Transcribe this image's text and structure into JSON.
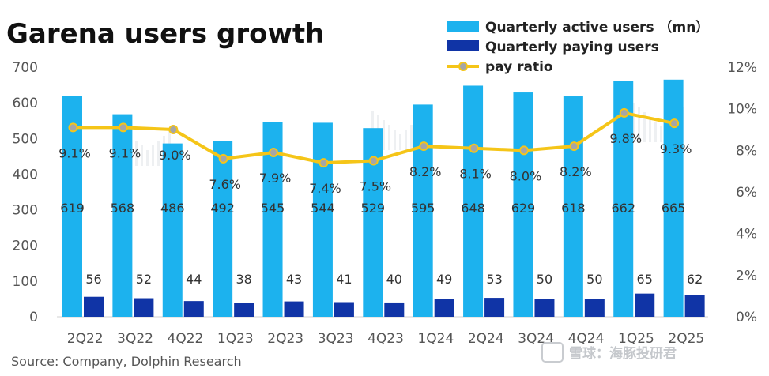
{
  "chart_data": {
    "type": "bar",
    "title": "Garena users growth",
    "categories": [
      "2Q22",
      "3Q22",
      "4Q22",
      "1Q23",
      "2Q23",
      "3Q23",
      "4Q23",
      "1Q24",
      "2Q24",
      "3Q24",
      "4Q24",
      "1Q25",
      "2Q25"
    ],
    "series": [
      {
        "name": "Quarterly active users （mn）",
        "type": "bar",
        "axis": "left",
        "color": "#1cb2ee",
        "values": [
          619,
          568,
          486,
          492,
          545,
          544,
          529,
          595,
          648,
          629,
          618,
          662,
          665
        ]
      },
      {
        "name": "Quarterly paying users",
        "type": "bar",
        "axis": "left",
        "color": "#1034a6",
        "values": [
          56,
          52,
          44,
          38,
          43,
          41,
          40,
          49,
          53,
          50,
          50,
          65,
          62
        ]
      },
      {
        "name": "pay ratio",
        "type": "line",
        "axis": "right",
        "color": "#f5c518",
        "marker_color": "#a6a6a6",
        "values": [
          9.1,
          9.1,
          9.0,
          7.6,
          7.9,
          7.4,
          7.5,
          8.2,
          8.1,
          8.0,
          8.2,
          9.8,
          9.3
        ],
        "labels": [
          "9.1%",
          "9.1%",
          "9.0%",
          "7.6%",
          "7.9%",
          "7.4%",
          "7.5%",
          "8.2%",
          "8.1%",
          "8.0%",
          "8.2%",
          "9.8%",
          "9.3%"
        ]
      }
    ],
    "y_left": {
      "min": 0,
      "max": 700,
      "ticks": [
        0,
        100,
        200,
        300,
        400,
        500,
        600,
        700
      ]
    },
    "y_right": {
      "min": 0,
      "max": 12,
      "ticks": [
        "0%",
        "2%",
        "4%",
        "6%",
        "8%",
        "10%",
        "12%"
      ]
    },
    "legend_position": "top-right",
    "grid": false
  },
  "source": "Source: Company, Dolphin Research",
  "watermark": {
    "text": "雪球：海豚投研君"
  }
}
